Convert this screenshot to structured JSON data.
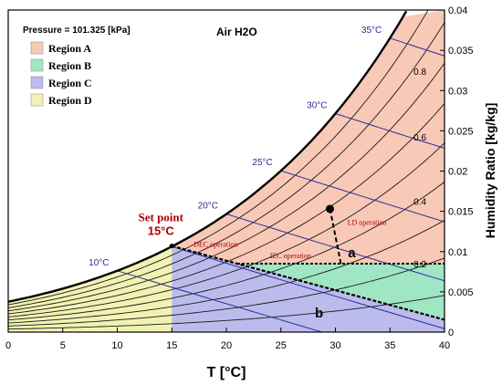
{
  "chart_data": {
    "type": "psychrometric",
    "xlabel": "T [°C]",
    "ylabel": "Humidity Ratio [kg/kg]",
    "xlim": [
      0,
      40
    ],
    "ylim": [
      0,
      0.04
    ],
    "x_ticks": [
      0,
      5,
      10,
      15,
      20,
      25,
      30,
      35,
      40
    ],
    "y_ticks": [
      0,
      0.005,
      0.01,
      0.015,
      0.02,
      0.025,
      0.03,
      0.035,
      0.04
    ],
    "pressure_label": "Pressure = 101.325 [kPa]",
    "fluid_label": "Air H2O",
    "colors": {
      "region_a": "#f9c9b7",
      "region_b": "#9fe6c4",
      "region_c": "#bcbcec",
      "region_d": "#f2f2b4",
      "rh_curve": "#000000",
      "wetbulb_line": "#2b2b9e",
      "label_red": "#b00000"
    },
    "legend": [
      {
        "name": "Region A",
        "color": "#f9c9b7"
      },
      {
        "name": "Region B",
        "color": "#9fe6c4"
      },
      {
        "name": "Region C",
        "color": "#bcbcec"
      },
      {
        "name": "Region D",
        "color": "#f2f2b4"
      }
    ],
    "relative_humidity_labels": [
      {
        "label": "0.8",
        "rh": 0.8
      },
      {
        "label": "0.6",
        "rh": 0.6
      },
      {
        "label": "0.4",
        "rh": 0.4
      },
      {
        "label": "0.2",
        "rh": 0.2
      }
    ],
    "relative_humidity_curves": [
      0.1,
      0.2,
      0.3,
      0.4,
      0.5,
      0.6,
      0.7,
      0.8,
      0.9
    ],
    "wet_bulb_lines": [
      {
        "label": "10°C",
        "twb": 10
      },
      {
        "label": "20°C",
        "twb": 20
      },
      {
        "label": "25°C",
        "twb": 25
      },
      {
        "label": "30°C",
        "twb": 30
      },
      {
        "label": "35°C",
        "twb": 35
      }
    ],
    "wet_bulb_unlabeled": [
      15
    ],
    "set_point": {
      "title": "Set point",
      "temp_label": "15°C",
      "t": 15,
      "w": 0.0107
    },
    "operating_point": {
      "t": 29.5,
      "w": 0.0153
    },
    "lines": {
      "ld_operation": {
        "label": "LD operation",
        "from": [
          29.5,
          0.0153
        ],
        "to": [
          30.5,
          0.0085
        ]
      },
      "iec_operation": {
        "label": "IEC operation",
        "from": [
          21,
          0.0085
        ],
        "to": [
          40,
          0.0085
        ]
      },
      "dec_operation": {
        "label": "DEC operation",
        "from": [
          15,
          0.0107
        ],
        "to": [
          21,
          0.0085
        ]
      }
    },
    "annotations": {
      "a": "a",
      "b": "b"
    }
  }
}
